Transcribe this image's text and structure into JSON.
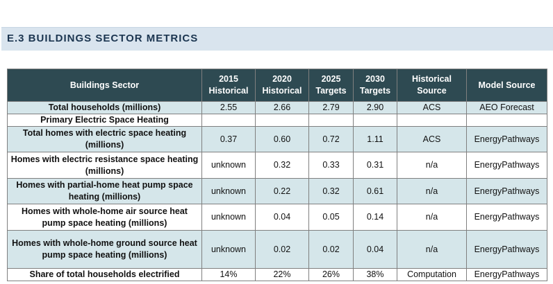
{
  "section": {
    "title": "E.3 BUILDINGS SECTOR METRICS"
  },
  "table": {
    "headers": {
      "sector": "Buildings Sector",
      "h2015": [
        "2015",
        "Historical"
      ],
      "h2020": [
        "2020",
        "Historical"
      ],
      "h2025": [
        "2025",
        "Targets"
      ],
      "h2030": [
        "2030",
        "Targets"
      ],
      "hsource": [
        "Historical",
        "Source"
      ],
      "model": "Model Source"
    },
    "rows": [
      {
        "label": "Total households (millions)",
        "v2015": "2.55",
        "v2020": "2.66",
        "v2025": "2.79",
        "v2030": "2.90",
        "source": "ACS",
        "model": "AEO Forecast"
      },
      {
        "label": "Primary Electric Space Heating",
        "v2015": "",
        "v2020": "",
        "v2025": "",
        "v2030": "",
        "source": "",
        "model": ""
      },
      {
        "label": "Total homes with electric space heating (millions)",
        "v2015": "0.37",
        "v2020": "0.60",
        "v2025": "0.72",
        "v2030": "1.11",
        "source": "ACS",
        "model": "EnergyPathways"
      },
      {
        "label": "Homes with electric resistance space heating (millions)",
        "v2015": "unknown",
        "v2020": "0.32",
        "v2025": "0.33",
        "v2030": "0.31",
        "source": "n/a",
        "model": "EnergyPathways"
      },
      {
        "label": "Homes with partial-home heat pump space heating (millions)",
        "v2015": "unknown",
        "v2020": "0.22",
        "v2025": "0.32",
        "v2030": "0.61",
        "source": "n/a",
        "model": "EnergyPathways"
      },
      {
        "label": "Homes with whole-home air source heat pump space heating (millions)",
        "v2015": "unknown",
        "v2020": "0.04",
        "v2025": "0.05",
        "v2030": "0.14",
        "source": "n/a",
        "model": "EnergyPathways"
      },
      {
        "label": "Homes with whole-home ground source heat pump space heating (millions)",
        "v2015": "unknown",
        "v2020": "0.02",
        "v2025": "0.02",
        "v2030": "0.04",
        "source": "n/a",
        "model": "EnergyPathways"
      },
      {
        "label": "Share of total households electrified",
        "v2015": "14%",
        "v2020": "22%",
        "v2025": "26%",
        "v2030": "38%",
        "source": "Computation",
        "model": "EnergyPathways"
      }
    ]
  }
}
